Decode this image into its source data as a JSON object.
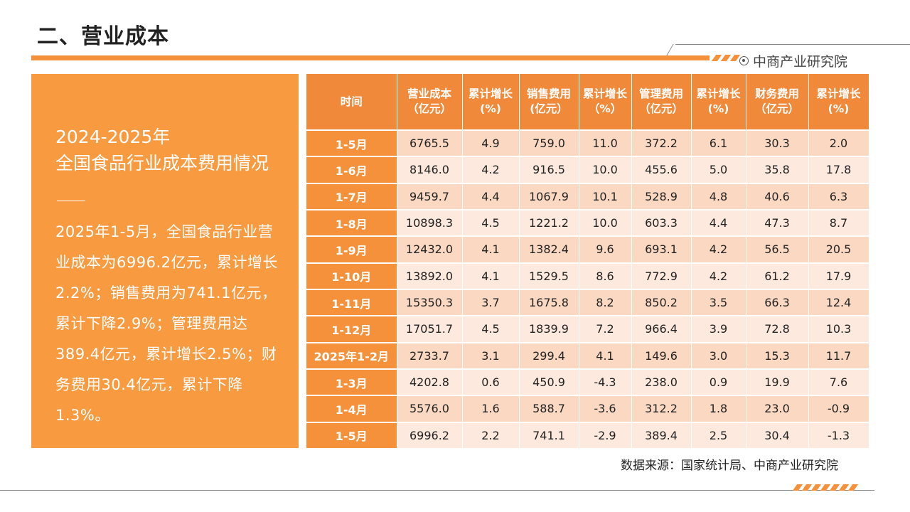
{
  "page": {
    "title": "二、营业成本",
    "brand": "中商产业研究院",
    "source": "数据来源：国家统计局、中商产业研究院"
  },
  "colors": {
    "accent": "#f5913a",
    "row_dark": "#fbd8c2",
    "row_light": "#fde9de"
  },
  "panel": {
    "year": "2024-2025年",
    "subtitle": "全国食品行业成本费用情况",
    "body": "2025年1-5月，全国食品行业营业成本为6996.2亿元，累计增长2.2%；销售费用为741.1亿元，累计下降2.9%；管理费用达389.4亿元，累计增长2.5%；财务费用30.4亿元，累计下降1.3%。"
  },
  "table": {
    "headers": [
      "时间",
      "营业成本（亿元）",
      "累计增长(%)",
      "销售费用(亿元）",
      "累计增长（%）",
      "管理费用（亿元）",
      "累计增长(%)",
      "财务费用（亿元）",
      "累计增长(%)"
    ],
    "rows": [
      [
        "1-5月",
        "6765.5",
        "4.9",
        "759.0",
        "11.0",
        "372.2",
        "6.1",
        "30.3",
        "2.0"
      ],
      [
        "1-6月",
        "8146.0",
        "4.2",
        "916.5",
        "10.0",
        "455.6",
        "5.0",
        "35.8",
        "17.8"
      ],
      [
        "1-7月",
        "9459.7",
        "4.4",
        "1067.9",
        "10.1",
        "528.9",
        "4.8",
        "40.6",
        "6.3"
      ],
      [
        "1-8月",
        "10898.3",
        "4.5",
        "1221.2",
        "10.0",
        "603.3",
        "4.4",
        "47.3",
        "8.7"
      ],
      [
        "1-9月",
        "12432.0",
        "4.1",
        "1382.4",
        "9.6",
        "693.1",
        "4.2",
        "56.5",
        "20.5"
      ],
      [
        "1-10月",
        "13892.0",
        "4.1",
        "1529.5",
        "8.6",
        "772.9",
        "4.2",
        "61.2",
        "17.9"
      ],
      [
        "1-11月",
        "15350.3",
        "3.7",
        "1675.8",
        "8.2",
        "850.2",
        "3.5",
        "66.3",
        "12.4"
      ],
      [
        "1-12月",
        "17051.7",
        "4.5",
        "1839.9",
        "7.2",
        "966.4",
        "3.9",
        "72.8",
        "10.3"
      ],
      [
        "2025年1-2月",
        "2733.7",
        "3.1",
        "299.4",
        "4.1",
        "149.6",
        "3.0",
        "15.3",
        "11.7"
      ],
      [
        "1-3月",
        "4202.8",
        "0.6",
        "450.9",
        "-4.3",
        "238.0",
        "0.9",
        "19.9",
        "7.6"
      ],
      [
        "1-4月",
        "5576.0",
        "1.6",
        "588.7",
        "-3.6",
        "312.2",
        "1.8",
        "23.0",
        "-0.9"
      ],
      [
        "1-5月",
        "6996.2",
        "2.2",
        "741.1",
        "-2.9",
        "389.4",
        "2.5",
        "30.4",
        "-1.3"
      ]
    ]
  }
}
